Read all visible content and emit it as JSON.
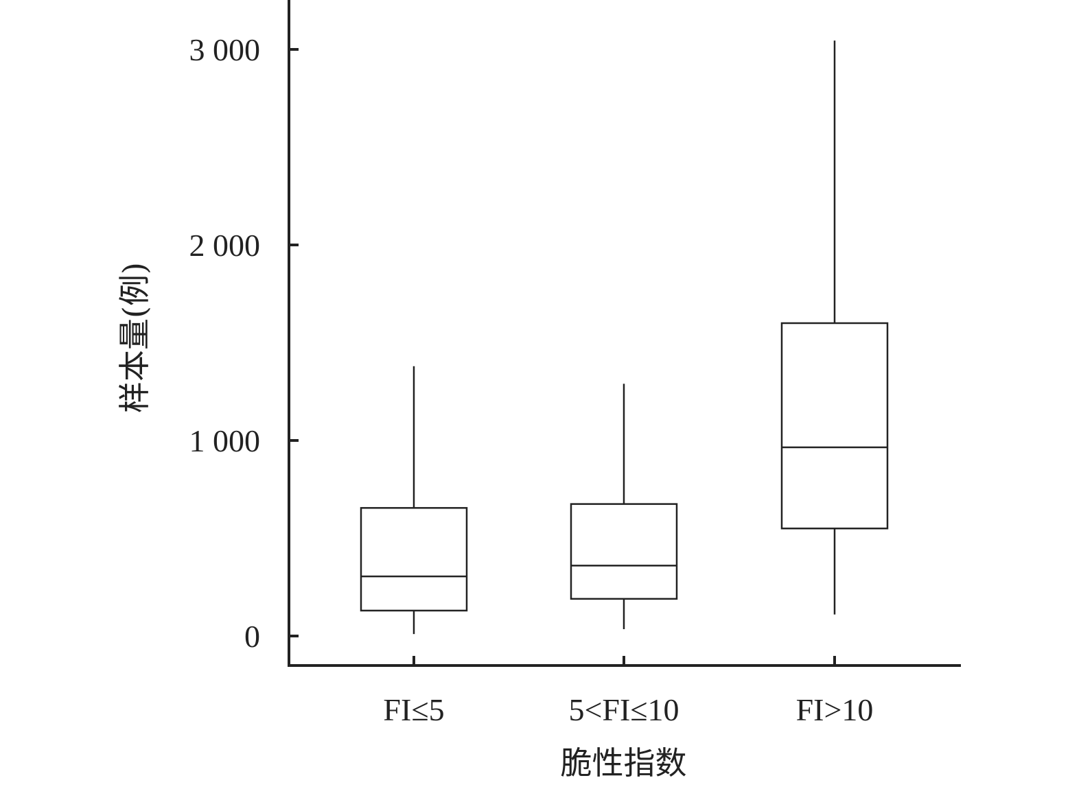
{
  "chart_data": {
    "type": "box",
    "xlabel": "脆性指数",
    "ylabel": "样本量(例)",
    "ylim": [
      -160,
      3250
    ],
    "yticks": [
      0,
      1000,
      2000,
      3000
    ],
    "ytick_labels": [
      "0",
      "1 000",
      "2 000",
      "3 000"
    ],
    "categories": [
      "FI≤5",
      "5<FI≤10",
      "FI>10"
    ],
    "boxes": [
      {
        "category": "FI≤5",
        "min": 10,
        "q1": 130,
        "median": 305,
        "q3": 655,
        "max": 1380
      },
      {
        "category": "5<FI≤10",
        "min": 35,
        "q1": 190,
        "median": 360,
        "q3": 675,
        "max": 1290
      },
      {
        "category": "FI>10",
        "min": 110,
        "q1": 550,
        "median": 965,
        "q3": 1600,
        "max": 3045
      }
    ],
    "grid": false,
    "legend": "none"
  }
}
